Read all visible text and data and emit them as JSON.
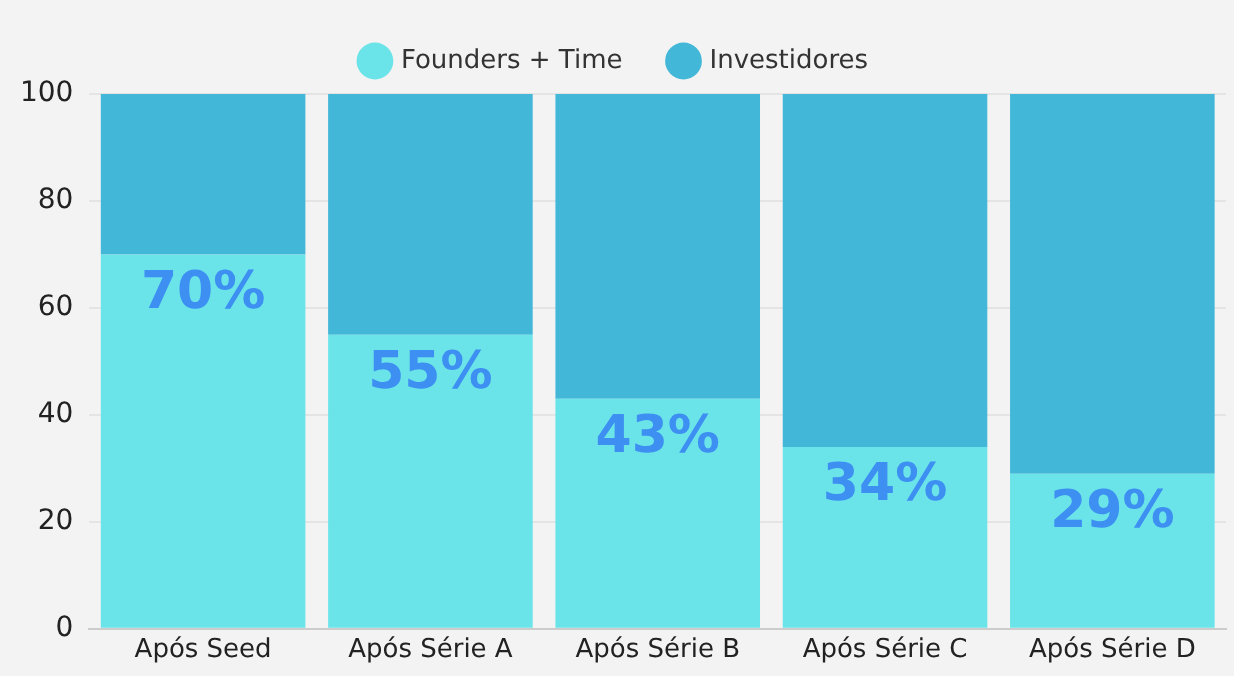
{
  "chart_data": {
    "type": "bar",
    "stacked": true,
    "categories": [
      "Após Seed",
      "Após Série A",
      "Após Série B",
      "Após Série C",
      "Após Série D"
    ],
    "series": [
      {
        "name": "Founders + Time",
        "color": "#6ae3e9",
        "values": [
          70,
          55,
          43,
          34,
          29
        ],
        "value_labels": [
          "70%",
          "55%",
          "43%",
          "34%",
          "29%"
        ]
      },
      {
        "name": "Investidores",
        "color": "#42b7d7",
        "values": [
          30,
          45,
          57,
          66,
          71
        ]
      }
    ],
    "ylim": [
      0,
      100
    ],
    "yticks": [
      0,
      20,
      40,
      60,
      80,
      100
    ],
    "grid": "y",
    "legend": "top"
  }
}
